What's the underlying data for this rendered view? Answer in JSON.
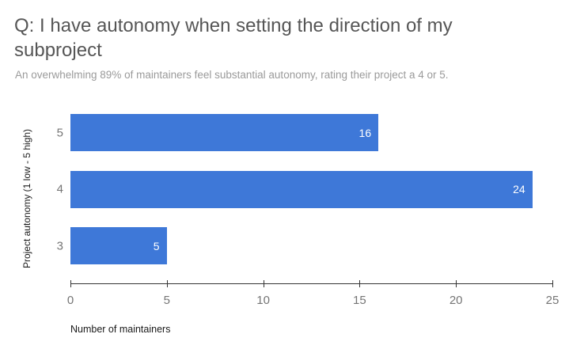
{
  "colors": {
    "bar_color": "#3e78d8",
    "title_text": "#565656",
    "subtitle_text": "#9a9a9a",
    "axis_label_text": "#757575",
    "axis_title_text": "#1a1a1a",
    "value_label_text": "#ffffff",
    "axis_line_color": "#333333",
    "background": "#ffffff"
  },
  "chart_data": {
    "type": "bar",
    "orientation": "horizontal",
    "title": "Q: I have autonomy when setting the direction of my subproject",
    "subtitle": "An overwhelming 89% of maintainers feel substantial autonomy, rating their project a 4 or 5.",
    "categories": [
      "5",
      "4",
      "3"
    ],
    "values": [
      16,
      24,
      5
    ],
    "value_labels": [
      "16",
      "24",
      "5"
    ],
    "xlabel": "Number of maintainers",
    "ylabel": "Project autonomy (1 low - 5 high)",
    "xlim": [
      0,
      25
    ],
    "xticks": [
      0,
      5,
      10,
      15,
      20,
      25
    ],
    "grid": false,
    "legend_position": "none"
  }
}
